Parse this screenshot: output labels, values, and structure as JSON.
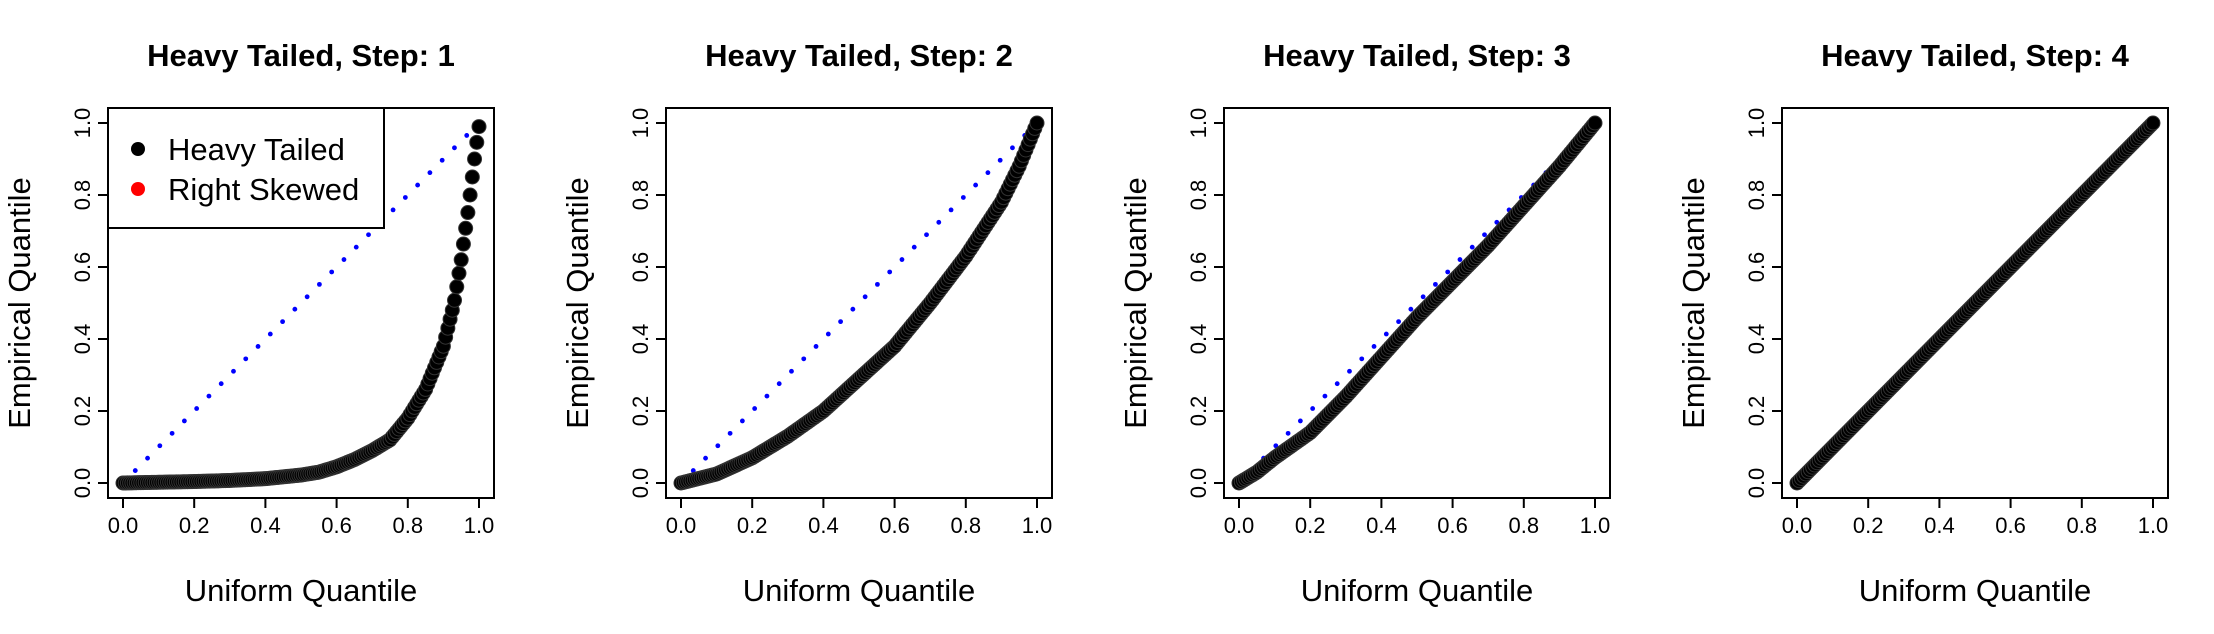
{
  "colors": {
    "empirical_points": "#000000",
    "reference_line": "#0000FF",
    "legend_right_skewed": "#FF0000"
  },
  "chart_data": [
    {
      "type": "scatter",
      "title": "Heavy Tailed, Step: 1",
      "xlabel": "Uniform Quantile",
      "ylabel": "Empirical Quantile",
      "xlim": [
        0,
        1
      ],
      "ylim": [
        0,
        1
      ],
      "xticks": [
        "0.0",
        "0.2",
        "0.4",
        "0.6",
        "0.8",
        "1.0"
      ],
      "yticks": [
        "0.0",
        "0.2",
        "0.4",
        "0.6",
        "0.8",
        "1.0"
      ],
      "grid": false,
      "legend": {
        "placement": "top-left",
        "entries": [
          {
            "label": "Heavy Tailed",
            "color": "#000000"
          },
          {
            "label": "Right Skewed",
            "color": "#FF0000"
          }
        ]
      },
      "reference_line": {
        "x": [
          0,
          1
        ],
        "y": [
          0,
          1
        ],
        "style": "dotted"
      },
      "curve": {
        "x": [
          0.0,
          0.1,
          0.2,
          0.3,
          0.4,
          0.5,
          0.55,
          0.6,
          0.65,
          0.7,
          0.75,
          0.8,
          0.85,
          0.9,
          0.93,
          0.95,
          0.97,
          0.99,
          1.0
        ],
        "y": [
          0.0,
          0.002,
          0.004,
          0.007,
          0.012,
          0.022,
          0.03,
          0.045,
          0.065,
          0.09,
          0.12,
          0.18,
          0.26,
          0.38,
          0.5,
          0.62,
          0.76,
          0.92,
          0.99
        ]
      }
    },
    {
      "type": "scatter",
      "title": "Heavy Tailed, Step: 2",
      "xlabel": "Uniform Quantile",
      "ylabel": "Empirical Quantile",
      "xlim": [
        0,
        1
      ],
      "ylim": [
        0,
        1
      ],
      "xticks": [
        "0.0",
        "0.2",
        "0.4",
        "0.6",
        "0.8",
        "1.0"
      ],
      "yticks": [
        "0.0",
        "0.2",
        "0.4",
        "0.6",
        "0.8",
        "1.0"
      ],
      "grid": false,
      "reference_line": {
        "x": [
          0,
          1
        ],
        "y": [
          0,
          1
        ],
        "style": "dotted"
      },
      "curve": {
        "x": [
          0.0,
          0.1,
          0.2,
          0.3,
          0.4,
          0.5,
          0.6,
          0.7,
          0.8,
          0.9,
          0.95,
          1.0
        ],
        "y": [
          0.0,
          0.025,
          0.07,
          0.13,
          0.2,
          0.29,
          0.38,
          0.5,
          0.63,
          0.78,
          0.88,
          1.0
        ]
      }
    },
    {
      "type": "scatter",
      "title": "Heavy Tailed, Step: 3",
      "xlabel": "Uniform Quantile",
      "ylabel": "Empirical Quantile",
      "xlim": [
        0,
        1
      ],
      "ylim": [
        0,
        1
      ],
      "xticks": [
        "0.0",
        "0.2",
        "0.4",
        "0.6",
        "0.8",
        "1.0"
      ],
      "yticks": [
        "0.0",
        "0.2",
        "0.4",
        "0.6",
        "0.8",
        "1.0"
      ],
      "grid": false,
      "reference_line": {
        "x": [
          0,
          1
        ],
        "y": [
          0,
          1
        ],
        "style": "dotted"
      },
      "curve": {
        "x": [
          0.0,
          0.05,
          0.1,
          0.2,
          0.3,
          0.4,
          0.5,
          0.6,
          0.7,
          0.8,
          0.9,
          1.0
        ],
        "y": [
          0.0,
          0.03,
          0.07,
          0.14,
          0.24,
          0.35,
          0.46,
          0.56,
          0.66,
          0.77,
          0.88,
          1.0
        ]
      }
    },
    {
      "type": "scatter",
      "title": "Heavy Tailed, Step: 4",
      "xlabel": "Uniform Quantile",
      "ylabel": "Empirical Quantile",
      "xlim": [
        0,
        1
      ],
      "ylim": [
        0,
        1
      ],
      "xticks": [
        "0.0",
        "0.2",
        "0.4",
        "0.6",
        "0.8",
        "1.0"
      ],
      "yticks": [
        "0.0",
        "0.2",
        "0.4",
        "0.6",
        "0.8",
        "1.0"
      ],
      "grid": false,
      "reference_line": {
        "x": [
          0,
          1
        ],
        "y": [
          0,
          1
        ],
        "style": "dotted"
      },
      "curve": {
        "x": [
          0.0,
          0.2,
          0.4,
          0.6,
          0.8,
          1.0
        ],
        "y": [
          0.0,
          0.2,
          0.4,
          0.6,
          0.8,
          1.0
        ]
      }
    }
  ]
}
